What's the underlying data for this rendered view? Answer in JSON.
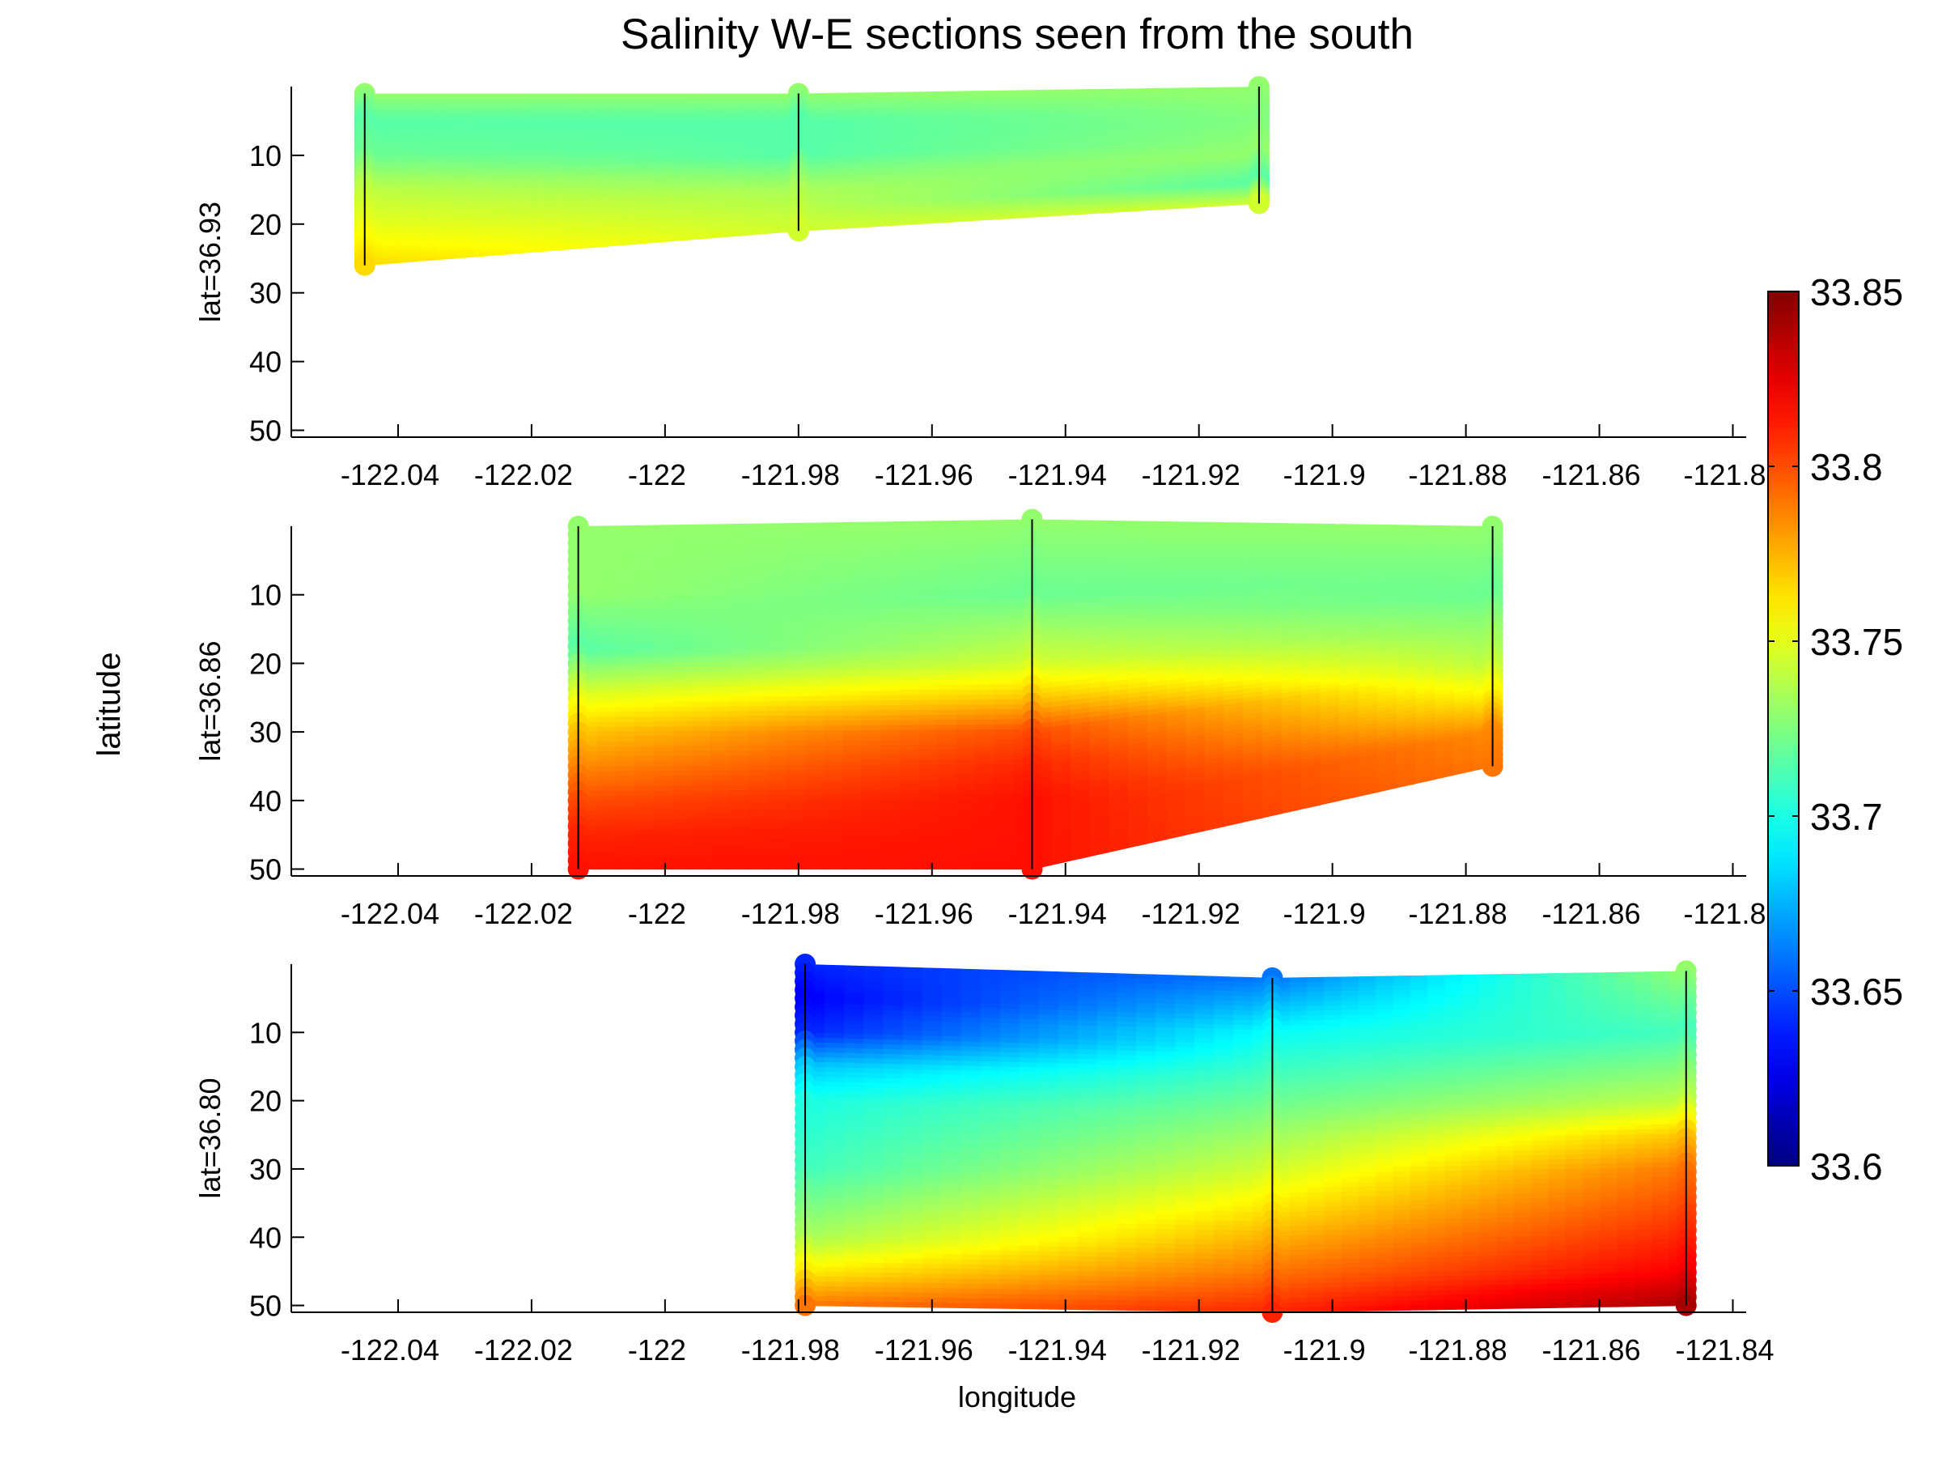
{
  "figure": {
    "title": "Salinity W-E sections seen from the south",
    "ylabel": "latitude",
    "xlabel": "longitude"
  },
  "chart_data": {
    "type": "heatmap",
    "title": "Salinity W-E sections seen from the south",
    "xlabel": "longitude",
    "ylabel": "latitude",
    "colormap": "jet",
    "colorbar": {
      "range": [
        33.6,
        33.85
      ],
      "ticks": [
        33.6,
        33.65,
        33.7,
        33.75,
        33.8,
        33.85
      ],
      "tick_labels": [
        "33.6",
        "33.65",
        "33.7",
        "33.75",
        "33.8",
        "33.85"
      ],
      "placement": "right"
    },
    "panels": [
      {
        "ylabel": "lat=36.93",
        "xlim": [
          -122.056,
          -121.838
        ],
        "ylim": [
          51,
          0
        ],
        "xticks": [
          -122.04,
          -122.02,
          -122,
          -121.98,
          -121.96,
          -121.94,
          -121.92,
          -121.9,
          -121.88,
          -121.86,
          -121.84
        ],
        "xtick_labels": [
          "-122.04",
          "-122.02",
          "-122",
          "-121.98",
          "-121.96",
          "-121.94",
          "-121.92",
          "-121.9",
          "-121.88",
          "-121.86",
          "-121.8"
        ],
        "yticks": [
          10,
          20,
          30,
          40,
          50
        ],
        "ytick_labels": [
          "10",
          "20",
          "30",
          "40",
          "50"
        ],
        "casts": [
          {
            "lon": -122.045,
            "depths": [
              1,
              5,
              10,
              15,
              20,
              26
            ],
            "salinity": [
              33.73,
              33.715,
              33.72,
              33.74,
              33.75,
              33.765
            ]
          },
          {
            "lon": -121.98,
            "depths": [
              1,
              5,
              10,
              15,
              21
            ],
            "salinity": [
              33.73,
              33.715,
              33.715,
              33.735,
              33.745
            ]
          },
          {
            "lon": -121.911,
            "depths": [
              0,
              5,
              10,
              14,
              17
            ],
            "salinity": [
              33.73,
              33.725,
              33.73,
              33.715,
              33.745
            ]
          }
        ]
      },
      {
        "ylabel": "lat=36.86",
        "xlim": [
          -122.056,
          -121.838
        ],
        "ylim": [
          51,
          0
        ],
        "xticks": [
          -122.04,
          -122.02,
          -122,
          -121.98,
          -121.96,
          -121.94,
          -121.92,
          -121.9,
          -121.88,
          -121.86,
          -121.84
        ],
        "xtick_labels": [
          "-122.04",
          "-122.02",
          "-122",
          "-121.98",
          "-121.96",
          "-121.94",
          "-121.92",
          "-121.9",
          "-121.88",
          "-121.86",
          "-121.8"
        ],
        "yticks": [
          10,
          20,
          30,
          40,
          50
        ],
        "ytick_labels": [
          "10",
          "20",
          "30",
          "40",
          "50"
        ],
        "casts": [
          {
            "lon": -122.013,
            "depths": [
              0,
              10,
              18,
              25,
              30,
              35,
              40,
              45,
              50
            ],
            "salinity": [
              33.73,
              33.73,
              33.715,
              33.75,
              33.77,
              33.785,
              33.8,
              33.81,
              33.815
            ]
          },
          {
            "lon": -121.945,
            "depths": [
              -1,
              10,
              20,
              25,
              30,
              35,
              40,
              45,
              50
            ],
            "salinity": [
              33.73,
              33.72,
              33.745,
              33.77,
              33.8,
              33.81,
              33.815,
              33.815,
              33.815
            ]
          },
          {
            "lon": -121.876,
            "depths": [
              0,
              10,
              20,
              25,
              30,
              35
            ],
            "salinity": [
              33.73,
              33.72,
              33.74,
              33.76,
              33.785,
              33.79
            ]
          }
        ]
      },
      {
        "ylabel": "lat=36.80",
        "xlim": [
          -122.056,
          -121.838
        ],
        "ylim": [
          51,
          0
        ],
        "xticks": [
          -122.04,
          -122.02,
          -122,
          -121.98,
          -121.96,
          -121.94,
          -121.92,
          -121.9,
          -121.88,
          -121.86,
          -121.84
        ],
        "xtick_labels": [
          "-122.04",
          "-122.02",
          "-122",
          "-121.98",
          "-121.96",
          "-121.94",
          "-121.92",
          "-121.9",
          "-121.88",
          "-121.86",
          "-121.84"
        ],
        "yticks": [
          10,
          20,
          30,
          40,
          50
        ],
        "ytick_labels": [
          "10",
          "20",
          "30",
          "40",
          "50"
        ],
        "casts": [
          {
            "lon": -121.979,
            "depths": [
              0,
              5,
              10,
              15,
              20,
              30,
              40,
              45,
              50
            ],
            "salinity": [
              33.64,
              33.63,
              33.64,
              33.68,
              33.7,
              33.71,
              33.735,
              33.76,
              33.79
            ]
          },
          {
            "lon": -121.909,
            "depths": [
              2,
              10,
              20,
              30,
              35,
              40,
              45,
              51
            ],
            "salinity": [
              33.66,
              33.695,
              33.72,
              33.745,
              33.76,
              33.775,
              33.79,
              33.81
            ]
          },
          {
            "lon": -121.847,
            "depths": [
              1,
              10,
              20,
              25,
              30,
              35,
              40,
              45,
              50
            ],
            "salinity": [
              33.73,
              33.71,
              33.74,
              33.77,
              33.79,
              33.8,
              33.81,
              33.82,
              33.84
            ]
          }
        ]
      }
    ]
  }
}
